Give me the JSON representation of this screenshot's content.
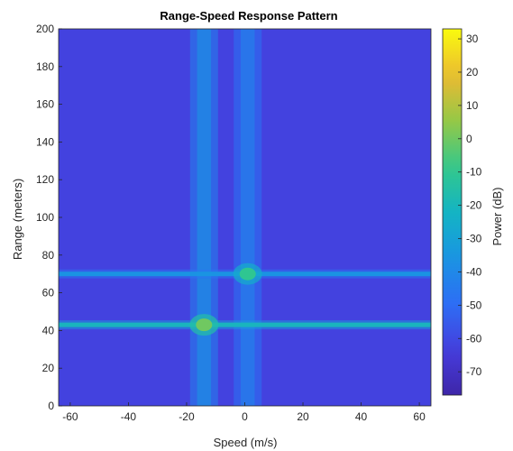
{
  "chart_data": {
    "type": "heatmap",
    "title": "Range-Speed Response Pattern",
    "xlabel": "Speed (m/s)",
    "ylabel": "Range (meters)",
    "xlim": [
      -64,
      64
    ],
    "ylim": [
      0,
      200
    ],
    "x_ticks": [
      -60,
      -40,
      -20,
      0,
      20,
      40,
      60
    ],
    "y_ticks": [
      0,
      20,
      40,
      60,
      80,
      100,
      120,
      140,
      160,
      180,
      200
    ],
    "colorbar": {
      "label": "Power (dB)",
      "range": [
        -77,
        33
      ],
      "ticks": [
        30,
        20,
        10,
        0,
        -10,
        -20,
        -30,
        -40,
        -50,
        -60,
        -70
      ],
      "colormap": "parula"
    },
    "background_level_db": -62,
    "range_lines": [
      {
        "range": 43,
        "level_db": -20
      },
      {
        "range": 70,
        "level_db": -35
      }
    ],
    "speed_lines": [
      {
        "speed": -14,
        "level_db": -42
      },
      {
        "speed": 1,
        "level_db": -47
      }
    ],
    "peaks": [
      {
        "speed": -14,
        "range": 43,
        "level_db": 0
      },
      {
        "speed": 1,
        "range": 70,
        "level_db": -10
      }
    ]
  }
}
